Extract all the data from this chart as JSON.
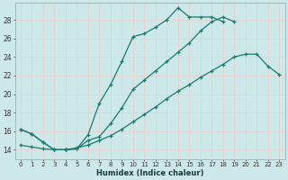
{
  "xlabel": "Humidex (Indice chaleur)",
  "bg_color": "#cce8e8",
  "grid_color": "#d4e8e8",
  "line_color": "#1a7a6e",
  "xlim": [
    -0.5,
    23.5
  ],
  "ylim": [
    13.0,
    29.8
  ],
  "xticks": [
    0,
    1,
    2,
    3,
    4,
    5,
    6,
    7,
    8,
    9,
    10,
    11,
    12,
    13,
    14,
    15,
    16,
    17,
    18,
    19,
    20,
    21,
    22,
    23
  ],
  "yticks": [
    14,
    16,
    18,
    20,
    22,
    24,
    26,
    28
  ],
  "series": [
    {
      "x": [
        0,
        1,
        2,
        3,
        4,
        5,
        6,
        7,
        8,
        9,
        10,
        11,
        12,
        13,
        14,
        15,
        16,
        17,
        18
      ],
      "y": [
        16.2,
        15.7,
        14.8,
        14.0,
        14.0,
        14.1,
        15.6,
        19.0,
        21.0,
        23.5,
        26.2,
        26.5,
        27.2,
        28.0,
        29.3,
        28.3,
        28.3,
        28.3,
        27.8
      ]
    },
    {
      "x": [
        0,
        1,
        2,
        3,
        4,
        5,
        6,
        7,
        8,
        9,
        10,
        11,
        12,
        13,
        14,
        15,
        16,
        17,
        18,
        19
      ],
      "y": [
        16.2,
        15.7,
        14.8,
        14.0,
        14.0,
        14.1,
        15.0,
        15.4,
        16.8,
        18.5,
        20.5,
        21.5,
        22.5,
        23.5,
        24.5,
        25.5,
        26.8,
        27.8,
        28.3,
        27.8
      ]
    },
    {
      "x": [
        0,
        1,
        2,
        3,
        4,
        5,
        6,
        7,
        8,
        9,
        10,
        11,
        12,
        13,
        14,
        15,
        16,
        17,
        18,
        19,
        20,
        21,
        22,
        23
      ],
      "y": [
        14.5,
        14.3,
        14.1,
        14.0,
        14.0,
        14.2,
        14.5,
        15.0,
        15.5,
        16.2,
        17.0,
        17.8,
        18.6,
        19.5,
        20.3,
        21.0,
        21.8,
        22.5,
        23.2,
        24.0,
        24.3,
        24.3,
        23.0,
        22.1
      ]
    }
  ]
}
